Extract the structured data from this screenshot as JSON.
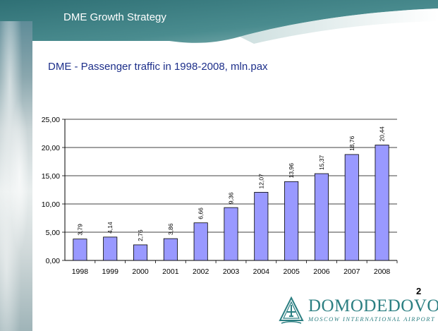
{
  "header": {
    "title": "DME Growth Strategy"
  },
  "slide": {
    "page_number": "2"
  },
  "logo": {
    "wordmark": "DOMODEDOVO",
    "subtitle": "MOSCOW INTERNATIONAL AIRPORT"
  },
  "colors": {
    "header_teal": "#3f7f83",
    "title_blue": "#1d2f8a",
    "bar_fill": "#9999ff",
    "logo_teal": "#2c7f82"
  },
  "chart_data": {
    "type": "bar",
    "title": "DME - Passenger traffic in 1998-2008, mln.pax",
    "xlabel": "",
    "ylabel": "",
    "categories": [
      "1998",
      "1999",
      "2000",
      "2001",
      "2002",
      "2003",
      "2004",
      "2005",
      "2006",
      "2007",
      "2008"
    ],
    "values": [
      3.79,
      4.14,
      2.76,
      3.86,
      6.66,
      9.36,
      12.07,
      13.96,
      15.37,
      18.76,
      20.44
    ],
    "value_labels": [
      "3,79",
      "4,14",
      "2,76",
      "3,86",
      "6,66",
      "9,36",
      "12,07",
      "13,96",
      "15,37",
      "18,76",
      "20,44"
    ],
    "ylim": [
      0,
      25
    ],
    "yticks": [
      "0,00",
      "5,00",
      "10,00",
      "15,00",
      "20,00",
      "25,00"
    ],
    "grid": true,
    "legend": "none"
  }
}
